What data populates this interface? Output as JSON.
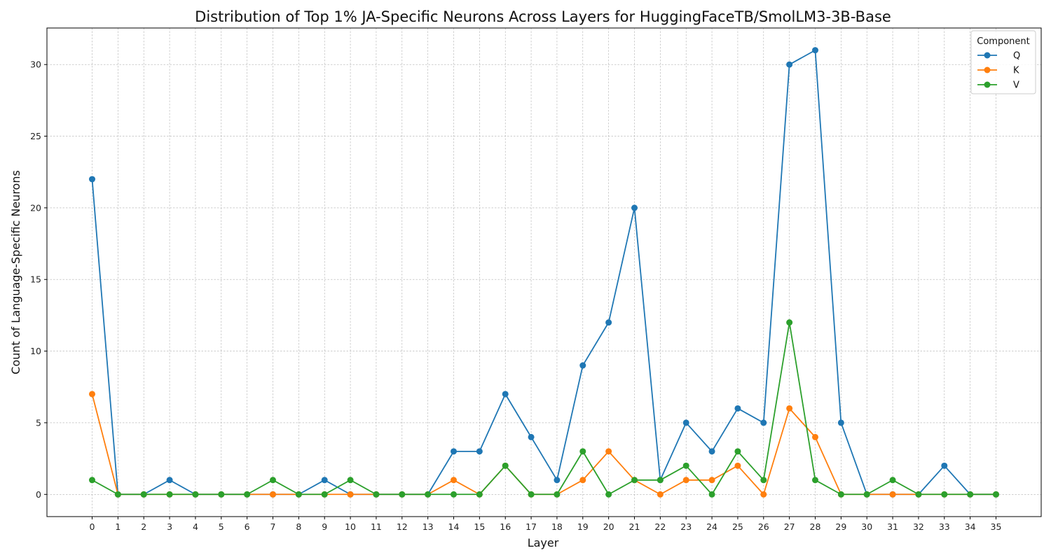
{
  "chart_data": {
    "type": "line",
    "title": "Distribution of Top 1% JA-Specific Neurons Across Layers for HuggingFaceTB/SmolLM3-3B-Base",
    "xlabel": "Layer",
    "ylabel": "Count of Language-Specific Neurons",
    "x": [
      0,
      1,
      2,
      3,
      4,
      5,
      6,
      7,
      8,
      9,
      10,
      11,
      12,
      13,
      14,
      15,
      16,
      17,
      18,
      19,
      20,
      21,
      22,
      23,
      24,
      25,
      26,
      27,
      28,
      29,
      30,
      31,
      32,
      33,
      34,
      35
    ],
    "xticks": [
      "0",
      "1",
      "2",
      "3",
      "4",
      "5",
      "6",
      "7",
      "8",
      "9",
      "10",
      "11",
      "12",
      "13",
      "14",
      "15",
      "16",
      "17",
      "18",
      "19",
      "20",
      "21",
      "22",
      "23",
      "24",
      "25",
      "26",
      "27",
      "28",
      "29",
      "30",
      "31",
      "32",
      "33",
      "34",
      "35"
    ],
    "yticks": [
      "0",
      "5",
      "10",
      "15",
      "20",
      "25",
      "30"
    ],
    "ylim": [
      -1.55,
      32.55
    ],
    "xlim": [
      -1.75,
      36.75
    ],
    "grid": true,
    "legend": {
      "title": "Component",
      "placement": "top-right"
    },
    "series": [
      {
        "name": "Q",
        "color": "#1f77b4",
        "values": [
          22,
          0,
          0,
          1,
          0,
          0,
          0,
          0,
          0,
          1,
          0,
          0,
          0,
          0,
          3,
          3,
          7,
          4,
          1,
          9,
          12,
          20,
          1,
          5,
          3,
          6,
          5,
          30,
          31,
          5,
          0,
          0,
          0,
          2,
          0,
          0
        ]
      },
      {
        "name": "K",
        "color": "#ff7f0e",
        "values": [
          7,
          0,
          0,
          0,
          0,
          0,
          0,
          0,
          0,
          0,
          0,
          0,
          0,
          0,
          1,
          0,
          2,
          0,
          0,
          1,
          3,
          1,
          0,
          1,
          1,
          2,
          0,
          6,
          4,
          0,
          0,
          0,
          0,
          0,
          0,
          0
        ]
      },
      {
        "name": "V",
        "color": "#2ca02c",
        "values": [
          1,
          0,
          0,
          0,
          0,
          0,
          0,
          1,
          0,
          0,
          1,
          0,
          0,
          0,
          0,
          0,
          2,
          0,
          0,
          3,
          0,
          1,
          1,
          2,
          0,
          3,
          1,
          12,
          1,
          0,
          0,
          1,
          0,
          0,
          0,
          0
        ]
      }
    ]
  }
}
